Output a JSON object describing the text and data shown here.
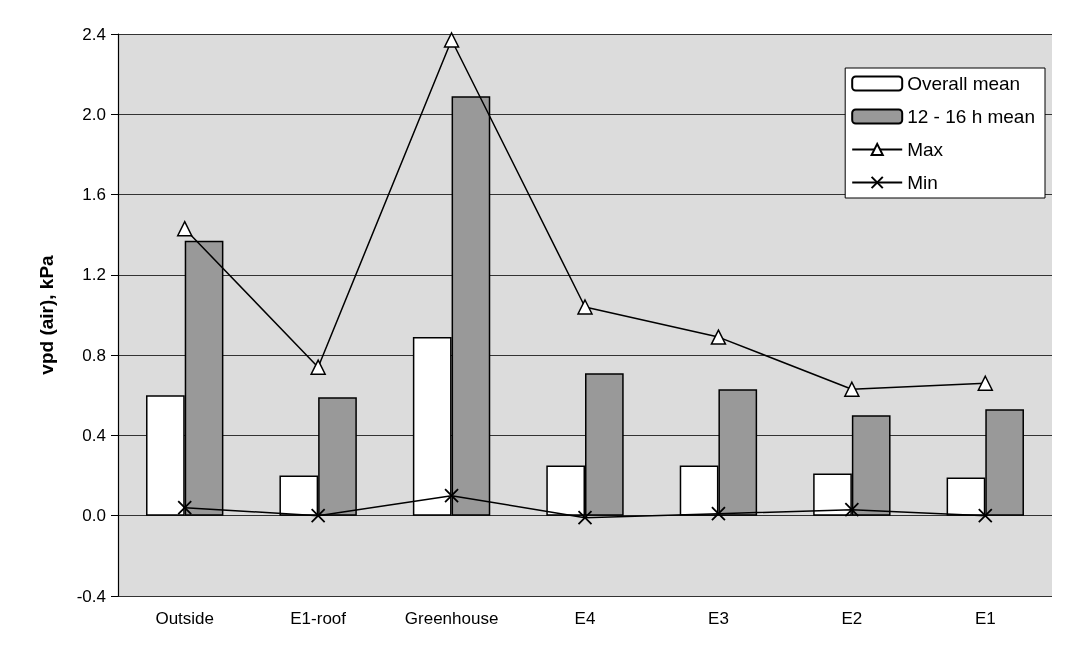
{
  "chart_data": {
    "type": "bar",
    "ylabel": "vpd (air), kPa",
    "categories": [
      "Outside",
      "E1-roof",
      "Greenhouse",
      "E4",
      "E3",
      "E2",
      "E1"
    ],
    "series": [
      {
        "name": "Overall mean",
        "color": "#ffffff",
        "values": [
          0.6,
          0.2,
          0.89,
          0.25,
          0.25,
          0.21,
          0.19
        ]
      },
      {
        "name": "12 - 16 h mean",
        "color": "#999999",
        "values": [
          1.37,
          0.59,
          2.09,
          0.71,
          0.63,
          0.5,
          0.53
        ]
      },
      {
        "name": "Max",
        "type": "line",
        "color": "#000000",
        "marker": "triangle",
        "values": [
          1.43,
          0.74,
          2.37,
          1.04,
          0.89,
          0.63,
          0.66
        ]
      },
      {
        "name": "Min",
        "type": "line",
        "color": "#000000",
        "marker": "cross",
        "values": [
          0.04,
          0.0,
          0.1,
          -0.01,
          0.01,
          0.03,
          0.0
        ]
      }
    ],
    "ylim": [
      -0.4,
      2.4
    ],
    "yticks": [
      -0.4,
      {
        "value": 0,
        "label": "0.0"
      },
      0.4,
      0.8,
      1.2,
      1.6,
      {
        "value": 2,
        "label": "2.0"
      },
      2.4
    ],
    "grid": "y",
    "legend": "top right"
  }
}
